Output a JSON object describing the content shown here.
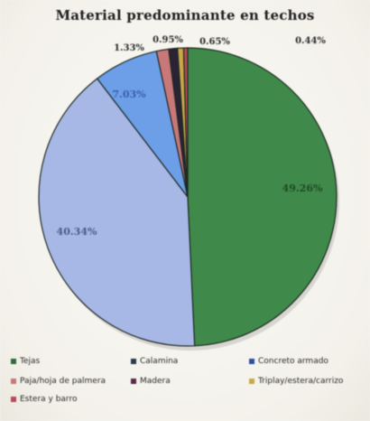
{
  "chart_data": {
    "type": "pie",
    "title": "Material predominante en techos",
    "slices": [
      {
        "label": "Tejas",
        "value": 49.26,
        "display": "49.26%",
        "color": "#3f8a4a"
      },
      {
        "label": "Calamina",
        "value": 40.34,
        "display": "40.34%",
        "color": "#a8b8e6"
      },
      {
        "label": "Concreto armado",
        "value": 7.03,
        "display": "7.03%",
        "color": "#6c9fe8"
      },
      {
        "label": "Paja/hoja de palmera",
        "value": 1.33,
        "display": "1.33%",
        "color": "#c9787a"
      },
      {
        "label": "Madera",
        "value": 0.95,
        "display": "0.95%",
        "color": "#2a2235"
      },
      {
        "label": "Triplay/estera/carrizo",
        "value": 0.65,
        "display": "0.65%",
        "color": "#c9a848"
      },
      {
        "label": "Estera y barro",
        "value": 0.44,
        "display": "0.44%",
        "color": "#b64a58"
      }
    ],
    "legend": {
      "placement": "bottom",
      "entries": [
        {
          "label": "Tejas",
          "color": "#2f6b3a"
        },
        {
          "label": "Calamina",
          "color": "#2a3a4a"
        },
        {
          "label": "Concreto armado",
          "color": "#2e4fa0"
        },
        {
          "label": "Paja/hoja de palmera",
          "color": "#c9787a"
        },
        {
          "label": "Madera",
          "color": "#5a2a4a"
        },
        {
          "label": "Triplay/estera/carrizo",
          "color": "#c9a848"
        },
        {
          "label": "Estera y barro",
          "color": "#b64a58"
        }
      ]
    }
  }
}
